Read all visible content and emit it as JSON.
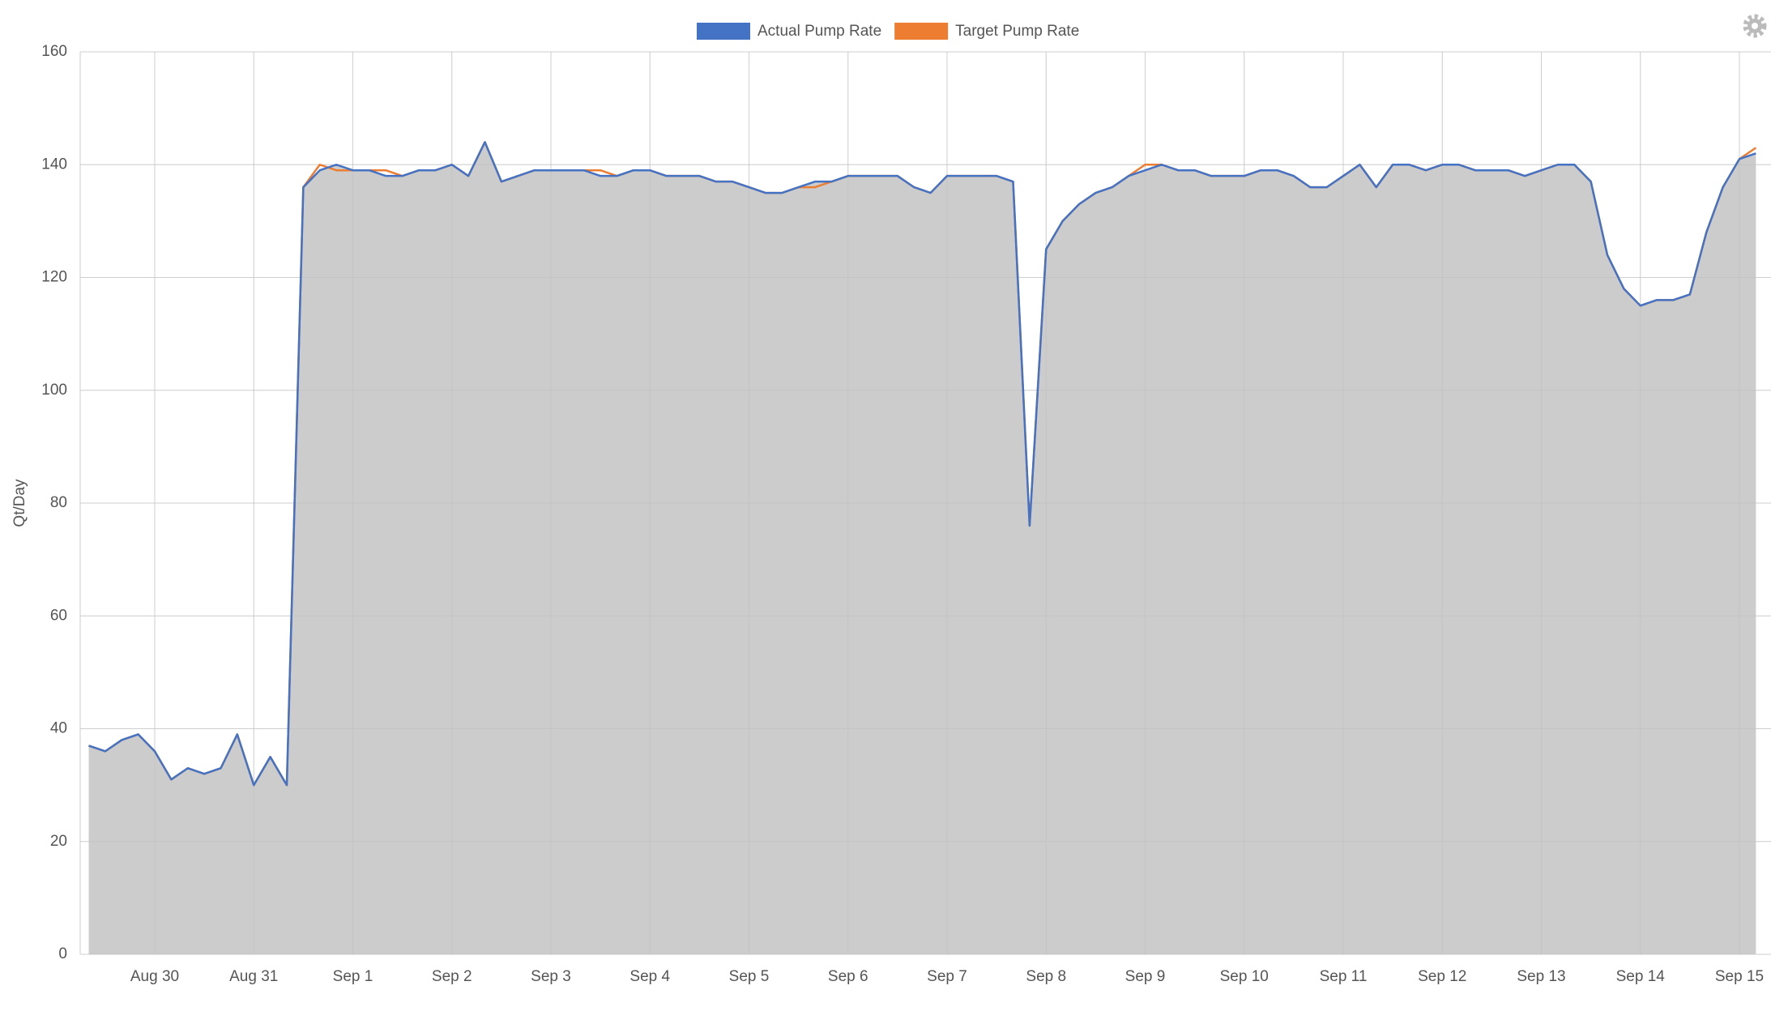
{
  "chart_data": {
    "type": "area-line",
    "y_label": "Qt/Day",
    "categories": [
      null,
      null,
      null,
      null,
      "Aug 30",
      null,
      null,
      null,
      null,
      null,
      "Aug 31",
      null,
      null,
      null,
      null,
      null,
      "Sep 1",
      null,
      null,
      null,
      null,
      null,
      "Sep 2",
      null,
      null,
      null,
      null,
      null,
      "Sep 3",
      null,
      null,
      null,
      null,
      null,
      "Sep 4",
      null,
      null,
      null,
      null,
      null,
      "Sep 5",
      null,
      null,
      null,
      null,
      null,
      "Sep 6",
      null,
      null,
      null,
      null,
      null,
      "Sep 7",
      null,
      null,
      null,
      null,
      null,
      "Sep 8",
      null,
      null,
      null,
      null,
      null,
      "Sep 9",
      null,
      null,
      null,
      null,
      null,
      "Sep 10",
      null,
      null,
      null,
      null,
      null,
      "Sep 11",
      null,
      null,
      null,
      null,
      null,
      "Sep 12",
      null,
      null,
      null,
      null,
      null,
      "Sep 13",
      null,
      null,
      null,
      null,
      null,
      "Sep 14",
      null,
      null,
      null,
      null,
      null,
      "Sep 15",
      null
    ],
    "series": [
      {
        "name": "Target Pump Rate",
        "color": "#ed7d31",
        "values": [
          37,
          36,
          38,
          39,
          36,
          31,
          33,
          32,
          33,
          39,
          30,
          35,
          30,
          136,
          140,
          139,
          139,
          139,
          139,
          138,
          139,
          139,
          140,
          138,
          144,
          137,
          138,
          139,
          139,
          139,
          139,
          139,
          138,
          139,
          139,
          138,
          138,
          138,
          137,
          137,
          136,
          135,
          135,
          136,
          136,
          137,
          138,
          138,
          138,
          138,
          136,
          135,
          138,
          138,
          138,
          138,
          137,
          76,
          125,
          130,
          133,
          135,
          136,
          138,
          140,
          140,
          139,
          139,
          138,
          138,
          138,
          139,
          139,
          138,
          136,
          136,
          138,
          140,
          136,
          140,
          140,
          139,
          140,
          140,
          139,
          139,
          139,
          138,
          139,
          140,
          140,
          137,
          124,
          118,
          115,
          116,
          116,
          117,
          128,
          136,
          141,
          143
        ]
      },
      {
        "name": "Actual Pump Rate",
        "color": "#4472c4",
        "fill": "#cccccc",
        "values": [
          37,
          36,
          38,
          39,
          36,
          31,
          33,
          32,
          33,
          39,
          30,
          35,
          30,
          136,
          139,
          140,
          139,
          139,
          138,
          138,
          139,
          139,
          140,
          138,
          144,
          137,
          138,
          139,
          139,
          139,
          139,
          138,
          138,
          139,
          139,
          138,
          138,
          138,
          137,
          137,
          136,
          135,
          135,
          136,
          137,
          137,
          138,
          138,
          138,
          138,
          136,
          135,
          138,
          138,
          138,
          138,
          137,
          76,
          125,
          130,
          133,
          135,
          136,
          138,
          139,
          140,
          139,
          139,
          138,
          138,
          138,
          139,
          139,
          138,
          136,
          136,
          138,
          140,
          136,
          140,
          140,
          139,
          140,
          140,
          139,
          139,
          139,
          138,
          139,
          140,
          140,
          137,
          124,
          118,
          115,
          116,
          116,
          117,
          128,
          136,
          141,
          142
        ]
      }
    ],
    "legend_order": [
      1,
      0
    ],
    "ylim": [
      0,
      160
    ],
    "yticks": [
      0,
      20,
      40,
      60,
      80,
      100,
      120,
      140,
      160
    ],
    "grid": true
  }
}
